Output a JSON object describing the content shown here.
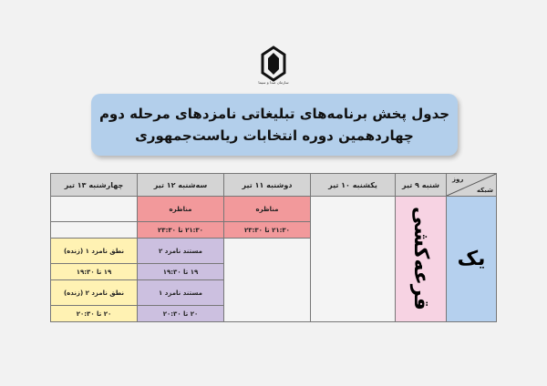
{
  "logo": {
    "caption": "سازمان صدا و سیما"
  },
  "title": {
    "line1": "جدول پخش برنامه‌های تبلیغاتی نامزدهای مرحله دوم",
    "line2": "چهاردهمین دوره انتخابات ریاست‌جمهوری"
  },
  "table": {
    "corner_day": "روز",
    "corner_channel": "شبکه",
    "days": [
      "شنبه ۹ تیر",
      "یکشنبه ۱۰ تیر",
      "دوشنبه ۱۱ تیر",
      "سه‌شنبه ۱۲ تیر",
      "چهارشنبه ۱۳ تیر"
    ],
    "channel": "یک",
    "saturday": "قرعه‌کشی",
    "monday": {
      "program": "مناظره",
      "time": "۲۱:۳۰ تا ۲۳:۳۰"
    },
    "tuesday": [
      {
        "program": "مناظره",
        "time": "۲۱:۳۰ تا ۲۳:۳۰"
      },
      {
        "program": "مستند نامزد ۲",
        "time": "۱۹ تا ۱۹:۳۰"
      },
      {
        "program": "مستند نامزد ۱",
        "time": "۲۰ تا ۲۰:۳۰"
      }
    ],
    "wednesday": [
      {
        "program": "نطق نامزد ۱ (زنده)",
        "time": "۱۹ تا ۱۹:۳۰"
      },
      {
        "program": "نطق نامزد ۲ (زنده)",
        "time": "۲۰ تا ۲۰:۳۰"
      }
    ]
  }
}
